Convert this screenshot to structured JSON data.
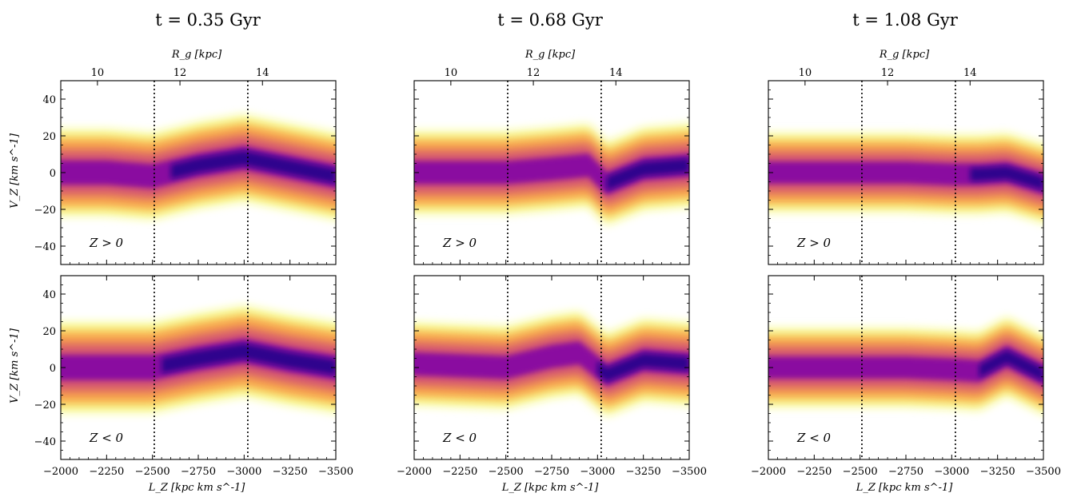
{
  "figure": {
    "columns": [
      {
        "title": "t = 0.35 Gyr"
      },
      {
        "title": "t = 0.68 Gyr"
      },
      {
        "title": "t = 1.08 Gyr"
      }
    ],
    "rows": [
      {
        "annotation": "Z > 0"
      },
      {
        "annotation": "Z < 0"
      }
    ],
    "top_axis_label": "R_g [kpc]",
    "top_axis_ticks": [
      "10",
      "12",
      "14"
    ],
    "y_axis_label": "V_Z [km s^-1]",
    "x_axis_label": "L_Z [kpc km s^-1]",
    "colormap": [
      "#0d0887",
      "#7e03a8",
      "#cc4778",
      "#f89540",
      "#f0f921"
    ]
  },
  "chart_data": {
    "type": "heatmap",
    "xlim": [
      -2000,
      -3500
    ],
    "ylim": [
      -50,
      50
    ],
    "x_ticks": [
      -2000,
      -2250,
      -2500,
      -2750,
      -3000,
      -3250,
      -3500
    ],
    "y_ticks": [
      -40,
      -20,
      0,
      20,
      40
    ],
    "y_tick_labels": [
      "−40",
      "−20",
      "0",
      "20",
      "40"
    ],
    "x_tick_labels": [
      "−2000",
      "−2250",
      "−2500",
      "−2750",
      "−3000",
      "−3250",
      "−3500"
    ],
    "top_axis": {
      "label": "R_g [kpc]",
      "ticks_kpc": [
        10,
        12,
        14
      ],
      "Lz_at_ticks": [
        -2200,
        -2650,
        -3100
      ]
    },
    "vertical_lines_Lz": [
      -2510,
      -3020
    ],
    "panels": [
      {
        "time": "0.35 Gyr",
        "hemisphere": "Z > 0",
        "ridge_Lz": [
          -2000,
          -2250,
          -2500,
          -2750,
          -3000,
          -3250,
          -3500
        ],
        "ridge_Vz": [
          0,
          0,
          -2,
          4,
          8,
          3,
          -2
        ],
        "half_width": 22,
        "dark_regions_Lz": [
          [
            -2600,
            -3500
          ]
        ]
      },
      {
        "time": "0.68 Gyr",
        "hemisphere": "Z > 0",
        "ridge_Lz": [
          -2000,
          -2250,
          -2500,
          -2750,
          -2950,
          -3050,
          -3250,
          -3500
        ],
        "ridge_Vz": [
          0,
          0,
          0,
          2,
          4,
          -6,
          2,
          4
        ],
        "half_width": 21,
        "dark_regions_Lz": [
          [
            -3050,
            -3500
          ]
        ]
      },
      {
        "time": "1.08 Gyr",
        "hemisphere": "Z > 0",
        "ridge_Lz": [
          -2000,
          -2250,
          -2500,
          -2750,
          -3000,
          -3150,
          -3300,
          -3500
        ],
        "ridge_Vz": [
          0,
          0,
          0,
          0,
          -1,
          -1,
          0,
          -6
        ],
        "half_width": 20,
        "dark_regions_Lz": [
          [
            -3100,
            -3500
          ]
        ]
      },
      {
        "time": "0.35 Gyr",
        "hemisphere": "Z < 0",
        "ridge_Lz": [
          -2000,
          -2250,
          -2500,
          -2750,
          -3000,
          -3250,
          -3500
        ],
        "ridge_Vz": [
          0,
          0,
          0,
          5,
          9,
          4,
          0
        ],
        "half_width": 23,
        "dark_regions_Lz": [
          [
            -2550,
            -3500
          ]
        ]
      },
      {
        "time": "0.68 Gyr",
        "hemisphere": "Z < 0",
        "ridge_Lz": [
          -2000,
          -2250,
          -2500,
          -2750,
          -2900,
          -3050,
          -3250,
          -3500
        ],
        "ridge_Vz": [
          2,
          1,
          0,
          6,
          8,
          -4,
          4,
          2
        ],
        "half_width": 21,
        "dark_regions_Lz": [
          [
            -3000,
            -3500
          ]
        ]
      },
      {
        "time": "1.08 Gyr",
        "hemisphere": "Z < 0",
        "ridge_Lz": [
          -2000,
          -2250,
          -2500,
          -2750,
          -3000,
          -3150,
          -3300,
          -3500
        ],
        "ridge_Vz": [
          0,
          0,
          0,
          0,
          -1,
          -2,
          6,
          -4
        ],
        "half_width": 20,
        "dark_regions_Lz": [
          [
            -3150,
            -3500
          ]
        ]
      }
    ]
  }
}
